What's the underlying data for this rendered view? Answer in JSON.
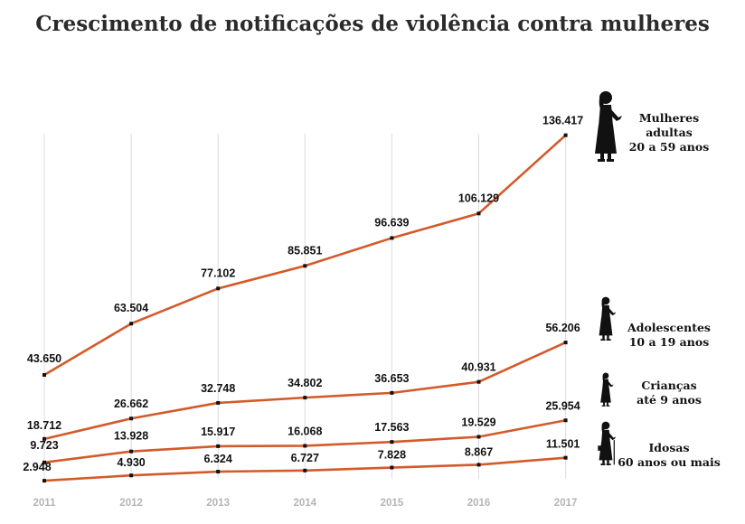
{
  "chart_data": {
    "type": "line",
    "title": "Crescimento de notificações de violência contra mulheres",
    "x": [
      "2011",
      "2012",
      "2013",
      "2014",
      "2015",
      "2016",
      "2017"
    ],
    "grid": "vertical",
    "legend": "right (labels at line ends)",
    "ylim": [
      0,
      140000
    ],
    "series": [
      {
        "name": "Mulheres adultas 20 a 59 anos",
        "name_lines": [
          "Mulheres",
          "adultas",
          "20 a 59 anos"
        ],
        "icon": "adult-woman-silhouette-icon",
        "values": [
          43650,
          63504,
          77102,
          85851,
          96639,
          106129,
          136417
        ],
        "labels": [
          "43.650",
          "63.504",
          "77.102",
          "85.851",
          "96.639",
          "106.129",
          "136.417"
        ]
      },
      {
        "name": "Adolescentes 10 a 19 anos",
        "name_lines": [
          "Adolescentes",
          "10 a 19 anos"
        ],
        "icon": "teen-girl-silhouette-icon",
        "values": [
          18712,
          26662,
          32748,
          34802,
          36653,
          40931,
          56206
        ],
        "labels": [
          "18.712",
          "26.662",
          "32.748",
          "34.802",
          "36.653",
          "40.931",
          "56.206"
        ]
      },
      {
        "name": "Crianças até 9 anos",
        "name_lines": [
          "Crianças",
          "até 9 anos"
        ],
        "icon": "child-girl-silhouette-icon",
        "values": [
          9723,
          13928,
          15917,
          16068,
          17563,
          19529,
          25954
        ],
        "labels": [
          "9.723",
          "13.928",
          "15.917",
          "16.068",
          "17.563",
          "19.529",
          "25.954"
        ]
      },
      {
        "name": "Idosas 60 anos ou mais",
        "name_lines": [
          "Idosas",
          "60 anos ou mais"
        ],
        "icon": "elderly-woman-silhouette-icon",
        "values": [
          2948,
          4930,
          6324,
          6727,
          7828,
          8867,
          11501
        ],
        "labels": [
          "2.948",
          "4.930",
          "6.324",
          "6.727",
          "7.828",
          "8.867",
          "11.501"
        ]
      }
    ],
    "colors": {
      "line": "#d35a2a",
      "marker": "#111111",
      "grid": "#dcdcdc",
      "tick": "#b5b5b5"
    }
  }
}
